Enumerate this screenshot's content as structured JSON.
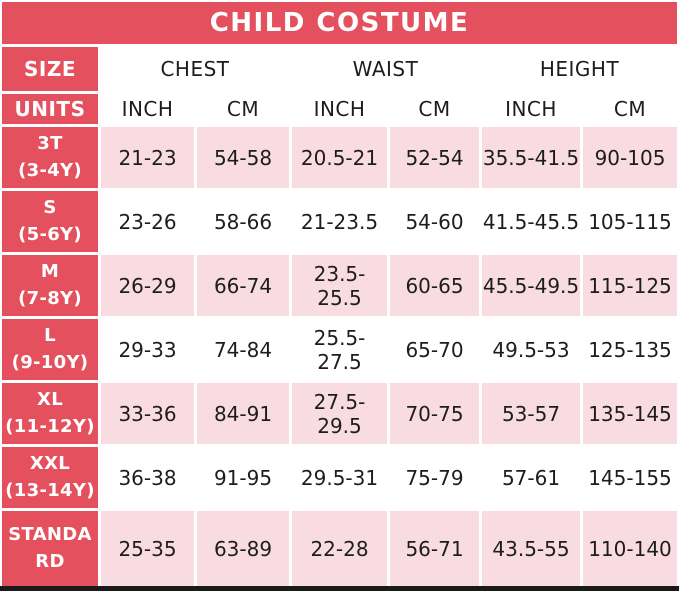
{
  "title": "CHILD COSTUME",
  "colors": {
    "header_pink": "#E5505F",
    "row_tint_pink": "#F9DCE1",
    "text_black": "#1D1D1D",
    "header_text_white": "#FFFFFF",
    "bottom_border_black": "#1A1A1A"
  },
  "chart_data": {
    "type": "table",
    "title": "CHILD COSTUME",
    "size_col_header": "SIZE",
    "units_col_header": "UNITS",
    "groups": [
      "CHEST",
      "WAIST",
      "HEIGHT"
    ],
    "unit_labels": [
      "INCH",
      "CM",
      "INCH",
      "CM",
      "INCH",
      "CM"
    ],
    "rows": [
      {
        "label_lines": [
          "3T",
          "(3-4Y)"
        ],
        "values": [
          "21-23",
          "54-58",
          "20.5-21",
          "52-54",
          "35.5-41.5",
          "90-105"
        ]
      },
      {
        "label_lines": [
          "S",
          "(5-6Y)"
        ],
        "values": [
          "23-26",
          "58-66",
          "21-23.5",
          "54-60",
          "41.5-45.5",
          "105-115"
        ]
      },
      {
        "label_lines": [
          "M",
          "(7-8Y)"
        ],
        "values": [
          "26-29",
          "66-74",
          "23.5-25.5",
          "60-65",
          "45.5-49.5",
          "115-125"
        ]
      },
      {
        "label_lines": [
          "L",
          "(9-10Y)"
        ],
        "values": [
          "29-33",
          "74-84",
          "25.5-27.5",
          "65-70",
          "49.5-53",
          "125-135"
        ]
      },
      {
        "label_lines": [
          "XL",
          "(11-12Y)"
        ],
        "values": [
          "33-36",
          "84-91",
          "27.5-29.5",
          "70-75",
          "53-57",
          "135-145"
        ]
      },
      {
        "label_lines": [
          "XXL",
          "(13-14Y)"
        ],
        "values": [
          "36-38",
          "91-95",
          "29.5-31",
          "75-79",
          "57-61",
          "145-155"
        ]
      },
      {
        "label_lines": [
          "STANDA",
          "RD"
        ],
        "values": [
          "25-35",
          "63-89",
          "22-28",
          "56-71",
          "43.5-55",
          "110-140"
        ]
      }
    ]
  }
}
